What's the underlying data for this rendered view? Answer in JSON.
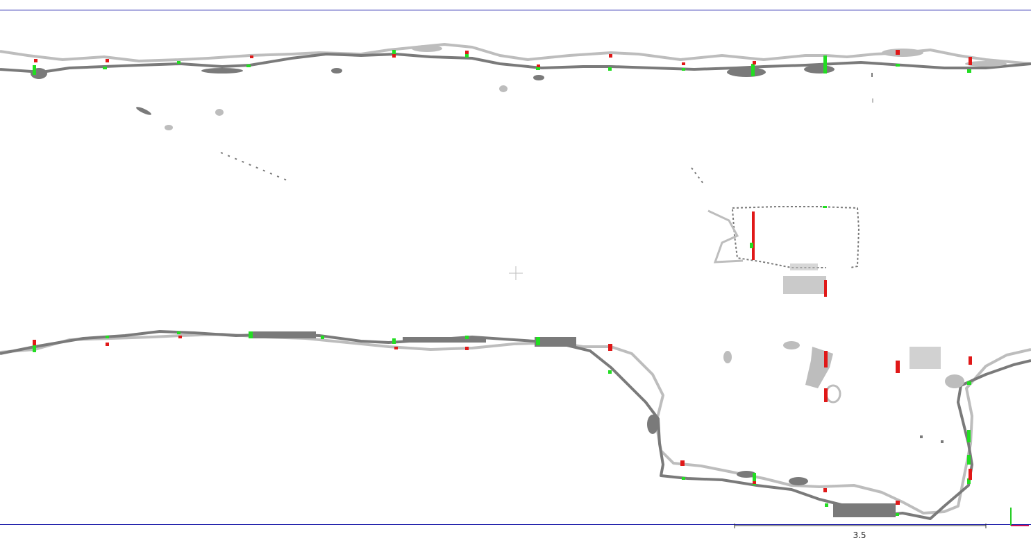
{
  "viewer": {
    "scale_bar_label": "3.5",
    "colors": {
      "frame_line": "#1a1aa8",
      "cloud_light": "#bdbdbd",
      "cloud_dark": "#7a7a7a",
      "match_inlier": "#22dd22",
      "match_outlier": "#e01818",
      "axis_y": "#22cc22",
      "axis_x": "#cc1155"
    },
    "icons": [
      "crosshair-icon",
      "axis-gizmo-icon"
    ]
  }
}
